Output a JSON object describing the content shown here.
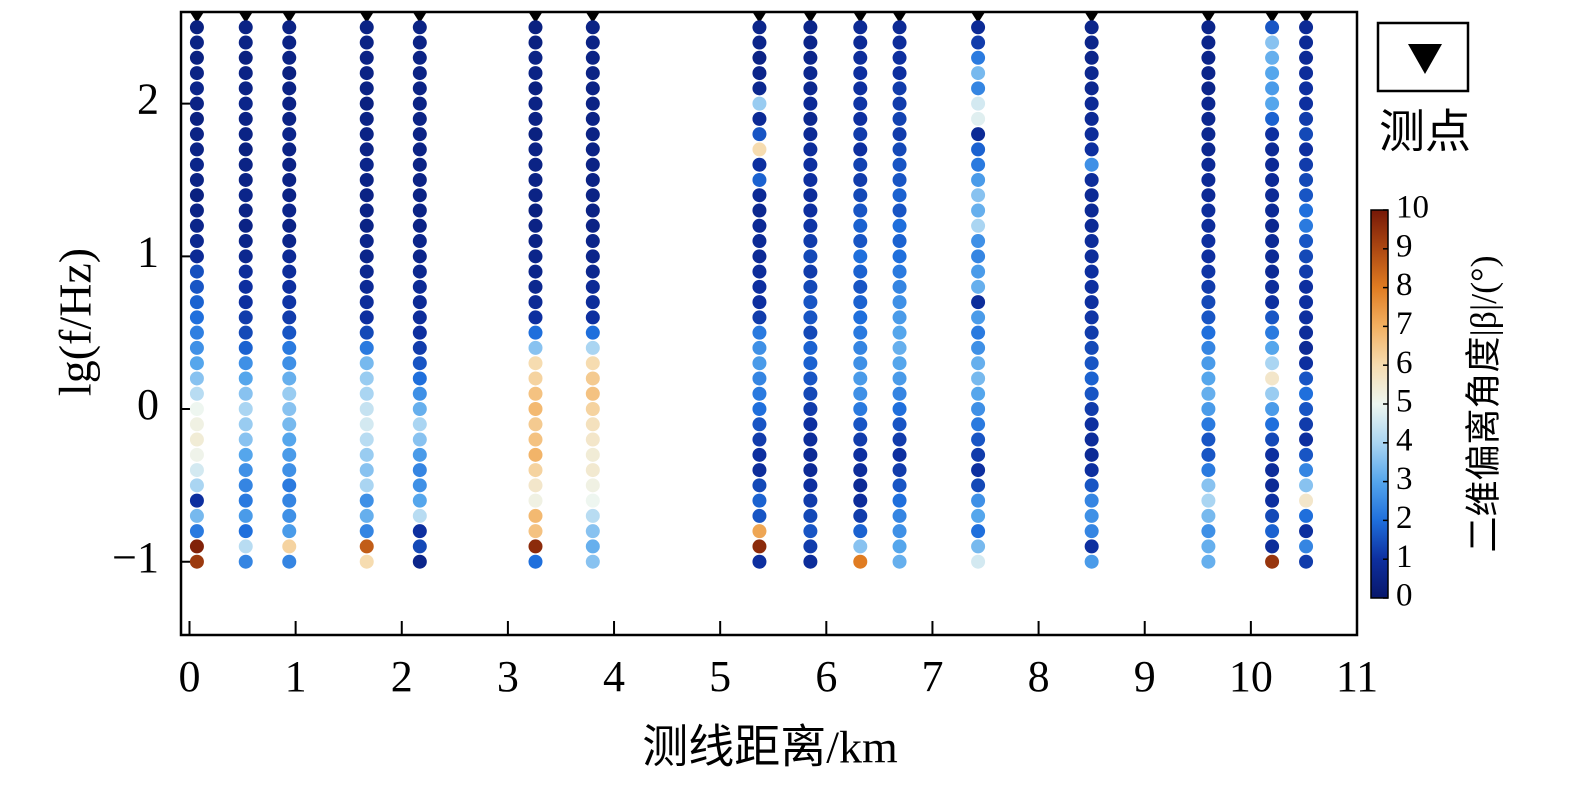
{
  "chart_data": {
    "type": "scatter",
    "xlabel": "测线距离/km",
    "ylabel": "lg(f/Hz)",
    "legend_label": "测点",
    "colorbar_label": "二维偏离角度|β|/(°)",
    "xlim": [
      -0.08,
      11
    ],
    "xticks": [
      0,
      1,
      2,
      3,
      4,
      5,
      6,
      7,
      8,
      9,
      10,
      11
    ],
    "ylim": [
      -1.48,
      2.6
    ],
    "yticks": [
      2,
      1,
      0,
      {
        "value": -1,
        "label": "−1"
      }
    ],
    "clim": [
      0,
      10
    ],
    "cticks": [
      0,
      1,
      2,
      3,
      4,
      5,
      6,
      7,
      8,
      9,
      10
    ],
    "colormap": [
      "#08176b",
      "#0d2f9f",
      "#1f6fdc",
      "#55a6ec",
      "#aad5f2",
      "#eef6f0",
      "#f6dcb0",
      "#f2b061",
      "#e07c22",
      "#ad4812",
      "#761807"
    ],
    "marker_color": "#000000",
    "stations": [
      0.07,
      0.53,
      0.94,
      1.67,
      2.17,
      3.26,
      3.8,
      5.37,
      5.85,
      6.32,
      6.69,
      7.43,
      8.5,
      9.6,
      10.2,
      10.52
    ],
    "lgf": [
      2.5,
      2.4,
      2.3,
      2.2,
      2.1,
      2.0,
      1.9,
      1.8,
      1.7,
      1.6,
      1.5,
      1.4,
      1.3,
      1.2,
      1.1,
      1.0,
      0.9,
      0.8,
      0.7,
      0.6,
      0.5,
      0.4,
      0.3,
      0.2,
      0.1,
      0.0,
      -0.1,
      -0.2,
      -0.3,
      -0.4,
      -0.5,
      -0.6,
      -0.7,
      -0.8,
      -0.9,
      -1.0
    ],
    "beta": [
      [
        0.4,
        0.5,
        0.4,
        0.5,
        0.6,
        0.5,
        0.4,
        0.5,
        0.5,
        0.6,
        0.5,
        0.4,
        0.5,
        0.6,
        0.7,
        0.8,
        1.5,
        1.6,
        1.8,
        2.0,
        2.3,
        2.6,
        3.0,
        3.6,
        4.2,
        5.0,
        5.2,
        5.4,
        5.1,
        4.6,
        4.0,
        1.0,
        3.4,
        2.2,
        9.8,
        9.3
      ],
      [
        0.5,
        0.5,
        0.4,
        0.5,
        0.5,
        0.6,
        0.5,
        0.5,
        0.4,
        0.5,
        0.5,
        0.6,
        0.5,
        0.5,
        0.6,
        0.7,
        0.9,
        1.0,
        1.0,
        1.2,
        1.4,
        1.8,
        2.6,
        3.0,
        3.6,
        4.0,
        3.8,
        3.6,
        3.0,
        2.6,
        2.4,
        2.2,
        2.8,
        2.0,
        4.2,
        2.4
      ],
      [
        0.5,
        0.5,
        0.5,
        0.4,
        0.5,
        0.5,
        0.5,
        0.6,
        0.5,
        0.5,
        0.5,
        0.5,
        0.6,
        0.5,
        0.6,
        0.8,
        0.9,
        1.0,
        1.1,
        1.2,
        1.6,
        2.2,
        2.6,
        3.2,
        3.8,
        3.6,
        3.4,
        3.0,
        2.8,
        2.6,
        2.2,
        2.4,
        2.6,
        2.8,
        6.2,
        2.4
      ],
      [
        0.5,
        0.5,
        0.5,
        0.5,
        0.5,
        0.4,
        0.5,
        0.5,
        0.5,
        0.6,
        0.5,
        0.5,
        0.5,
        0.5,
        0.6,
        0.6,
        0.7,
        0.8,
        0.9,
        1.0,
        1.4,
        2.2,
        3.4,
        3.8,
        4.0,
        4.4,
        4.6,
        4.2,
        3.8,
        3.6,
        4.0,
        2.6,
        3.2,
        2.4,
        8.6,
        6.0
      ],
      [
        0.5,
        0.5,
        0.5,
        0.5,
        0.5,
        0.5,
        0.5,
        0.5,
        0.5,
        0.5,
        0.5,
        0.5,
        0.5,
        0.5,
        0.6,
        0.6,
        0.7,
        0.8,
        0.8,
        0.9,
        1.0,
        1.2,
        1.6,
        2.0,
        2.6,
        3.2,
        4.0,
        3.6,
        2.8,
        2.4,
        2.6,
        3.0,
        4.2,
        1.0,
        1.4,
        0.6
      ],
      [
        0.4,
        0.4,
        0.5,
        0.5,
        0.4,
        0.5,
        0.5,
        0.4,
        0.5,
        0.5,
        0.5,
        0.5,
        0.4,
        0.5,
        0.5,
        0.6,
        0.6,
        0.7,
        0.8,
        1.0,
        2.0,
        3.6,
        6.0,
        6.2,
        6.6,
        6.8,
        6.4,
        6.6,
        6.9,
        6.2,
        5.6,
        5.2,
        6.8,
        6.6,
        9.6,
        2.0
      ],
      [
        0.5,
        0.5,
        0.5,
        0.5,
        0.5,
        0.5,
        0.5,
        0.5,
        0.5,
        0.5,
        0.5,
        0.5,
        0.5,
        0.5,
        0.6,
        0.6,
        0.7,
        0.8,
        0.9,
        1.0,
        2.0,
        4.0,
        6.0,
        6.4,
        6.6,
        6.2,
        5.8,
        5.6,
        5.4,
        5.5,
        5.2,
        5.0,
        4.2,
        3.6,
        3.2,
        3.6
      ],
      [
        0.6,
        0.6,
        0.5,
        0.6,
        0.7,
        3.8,
        0.8,
        1.6,
        6.0,
        1.0,
        1.8,
        0.8,
        0.7,
        0.8,
        0.8,
        0.8,
        0.9,
        1.0,
        1.0,
        1.2,
        2.2,
        2.6,
        2.8,
        2.4,
        2.2,
        2.0,
        1.6,
        1.2,
        1.0,
        0.9,
        1.4,
        1.8,
        1.6,
        7.2,
        9.6,
        1.0
      ],
      [
        0.6,
        0.6,
        0.6,
        0.7,
        0.7,
        0.8,
        0.7,
        0.8,
        0.9,
        1.0,
        1.0,
        0.9,
        1.0,
        1.1,
        1.2,
        1.4,
        1.2,
        1.4,
        1.6,
        1.6,
        1.4,
        1.8,
        1.8,
        1.6,
        1.4,
        1.2,
        1.0,
        0.9,
        0.8,
        0.8,
        1.0,
        1.2,
        1.4,
        1.6,
        1.2,
        0.9
      ],
      [
        0.8,
        0.8,
        0.9,
        1.0,
        1.0,
        1.1,
        1.0,
        1.2,
        1.0,
        1.3,
        1.2,
        1.4,
        1.6,
        1.8,
        1.6,
        2.0,
        1.8,
        1.6,
        1.8,
        2.0,
        2.2,
        2.4,
        2.6,
        2.8,
        2.6,
        2.2,
        1.6,
        1.2,
        1.0,
        0.9,
        0.8,
        0.9,
        1.2,
        1.8,
        3.6,
        8.0
      ],
      [
        0.8,
        0.9,
        1.0,
        1.0,
        1.2,
        1.2,
        1.3,
        1.2,
        1.4,
        1.6,
        1.6,
        1.8,
        1.6,
        2.0,
        1.8,
        2.0,
        2.2,
        2.4,
        2.6,
        2.8,
        3.0,
        3.2,
        3.0,
        2.8,
        2.4,
        2.0,
        1.6,
        1.2,
        1.0,
        1.2,
        1.6,
        2.0,
        2.4,
        2.6,
        3.0,
        3.2
      ],
      [
        0.8,
        1.2,
        2.2,
        3.4,
        2.4,
        4.6,
        4.8,
        0.8,
        1.8,
        2.2,
        2.8,
        3.6,
        3.2,
        4.0,
        2.6,
        2.4,
        2.8,
        3.2,
        0.9,
        2.8,
        2.2,
        2.6,
        3.2,
        3.4,
        3.0,
        2.6,
        2.2,
        1.6,
        1.2,
        1.0,
        1.4,
        2.6,
        3.0,
        2.0,
        3.4,
        4.6
      ],
      [
        0.6,
        0.6,
        0.6,
        0.7,
        0.7,
        0.8,
        0.8,
        0.9,
        1.0,
        2.6,
        0.9,
        0.8,
        0.8,
        0.8,
        0.9,
        0.9,
        1.0,
        1.0,
        1.0,
        1.1,
        1.2,
        1.4,
        1.6,
        1.8,
        1.6,
        1.2,
        1.0,
        0.9,
        0.8,
        1.0,
        1.6,
        2.4,
        2.6,
        2.4,
        1.0,
        2.8
      ],
      [
        0.6,
        0.6,
        0.6,
        0.6,
        0.6,
        0.7,
        0.7,
        0.7,
        0.7,
        0.8,
        0.8,
        0.8,
        0.9,
        0.9,
        1.0,
        1.0,
        1.1,
        1.2,
        1.4,
        1.6,
        2.0,
        2.4,
        2.8,
        3.0,
        3.2,
        2.8,
        2.2,
        1.6,
        1.6,
        2.2,
        3.6,
        4.0,
        3.4,
        2.6,
        3.2,
        3.2
      ],
      [
        1.6,
        3.6,
        3.2,
        3.0,
        2.8,
        3.0,
        1.8,
        1.0,
        0.8,
        0.8,
        0.8,
        0.8,
        0.8,
        0.7,
        0.8,
        0.8,
        0.8,
        0.9,
        1.0,
        1.6,
        2.2,
        3.0,
        4.0,
        5.6,
        3.8,
        2.8,
        2.0,
        1.4,
        1.0,
        0.9,
        0.8,
        1.0,
        1.4,
        1.8,
        0.9,
        9.4
      ],
      [
        0.8,
        0.8,
        0.8,
        0.9,
        1.0,
        1.0,
        1.2,
        1.4,
        1.0,
        1.2,
        1.4,
        1.6,
        2.0,
        2.2,
        1.6,
        1.4,
        1.2,
        1.0,
        1.0,
        1.0,
        0.9,
        0.8,
        1.0,
        1.6,
        2.0,
        1.6,
        1.2,
        1.0,
        1.6,
        2.4,
        3.6,
        5.6,
        2.0,
        1.0,
        2.4,
        1.2
      ]
    ]
  }
}
